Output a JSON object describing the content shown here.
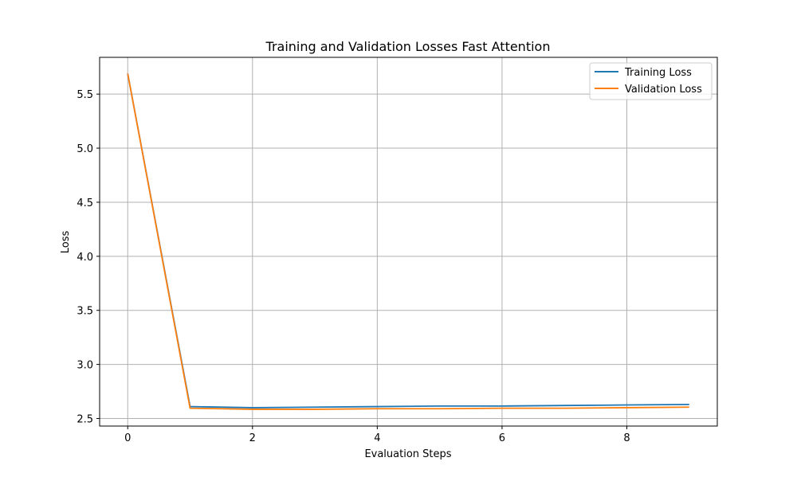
{
  "chart_data": {
    "type": "line",
    "title": "Training and Validation Losses Fast Attention",
    "xlabel": "Evaluation Steps",
    "ylabel": "Loss",
    "xlim": [
      -0.45,
      9.45
    ],
    "ylim": [
      2.43,
      5.84
    ],
    "xticks": [
      0,
      2,
      4,
      6,
      8
    ],
    "xtick_labels": [
      "0",
      "2",
      "4",
      "6",
      "8"
    ],
    "yticks": [
      2.5,
      3.0,
      3.5,
      4.0,
      4.5,
      5.0,
      5.5
    ],
    "ytick_labels": [
      "2.5",
      "3.0",
      "3.5",
      "4.0",
      "4.5",
      "5.0",
      "5.5"
    ],
    "grid": true,
    "legend_position": "top-right",
    "x": [
      0,
      1,
      2,
      3,
      4,
      5,
      6,
      7,
      8,
      9
    ],
    "series": [
      {
        "name": "Training Loss",
        "color": "#1f77b4",
        "values": [
          5.69,
          2.61,
          2.6,
          2.605,
          2.61,
          2.615,
          2.615,
          2.62,
          2.625,
          2.63
        ]
      },
      {
        "name": "Validation Loss",
        "color": "#ff7f0e",
        "values": [
          5.69,
          2.595,
          2.585,
          2.585,
          2.59,
          2.59,
          2.595,
          2.595,
          2.6,
          2.605
        ]
      }
    ]
  }
}
